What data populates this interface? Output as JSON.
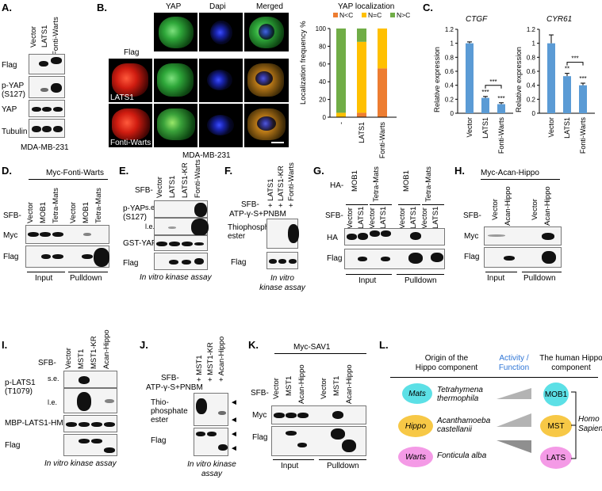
{
  "panels": {
    "A": {
      "letter": "A.",
      "lanes": [
        "Vector",
        "LATS1",
        "Fonti-Warts"
      ],
      "rows": [
        "Flag",
        "p-YAP (S127)",
        "YAP",
        "Tubulin"
      ],
      "cell_line": "MDA-MB-231"
    },
    "B": {
      "letter": "B.",
      "col_headers": [
        "YAP",
        "Dapi",
        "Merged"
      ],
      "flag_label": "Flag",
      "row_labels": [
        "LATS1",
        "Fonti-Warts"
      ],
      "cell_line": "MDA-MB-231",
      "chart": {
        "title": "YAP localization",
        "ylabel": "Localization frequency %",
        "legend": [
          "N<C",
          "N=C",
          "N>C"
        ],
        "colors": [
          "#ed7d31",
          "#ffc000",
          "#70ad47"
        ],
        "categories": [
          "-",
          "LATS1",
          "Fonti-Warts"
        ],
        "series": [
          {
            "name": "N<C",
            "values": [
              0,
              5,
              55
            ]
          },
          {
            "name": "N=C",
            "values": [
              5,
              80,
              45
            ]
          },
          {
            "name": "N>C",
            "values": [
              95,
              15,
              0
            ]
          }
        ]
      }
    },
    "C": {
      "letter": "C.",
      "genes": [
        "CTGF",
        "CYR61"
      ],
      "ylabel": "Relative expression",
      "categories": [
        "Vector",
        "LATS1",
        "Fonti-Warts"
      ],
      "ctgf": {
        "values": [
          1.0,
          0.22,
          0.13
        ],
        "errors": [
          0.02,
          0.02,
          0.02
        ],
        "stars": [
          "",
          "***",
          "***"
        ],
        "bracket": "***",
        "yticks": [
          "0",
          "0.2",
          "0.4",
          "0.6",
          "0.8",
          "1",
          "1.2"
        ]
      },
      "cyr61": {
        "values": [
          1.0,
          0.53,
          0.4
        ],
        "errors": [
          0.12,
          0.04,
          0.03
        ],
        "stars": [
          "",
          "**",
          "***"
        ],
        "bracket": "***",
        "yticks": [
          "0",
          "0.2",
          "0.4",
          "0.6",
          "0.8",
          "1",
          "1.2"
        ]
      }
    },
    "D": {
      "letter": "D.",
      "header": "Myc-Fonti-Warts",
      "sfb": "SFB-",
      "lanes": [
        "Vector",
        "MOB1",
        "Tetra-Mats",
        "Vector",
        "MOB1",
        "Tetra-Mats"
      ],
      "rows": [
        "Myc",
        "Flag"
      ],
      "footer": [
        "Input",
        "Pulldown"
      ]
    },
    "E": {
      "letter": "E.",
      "sfb": "SFB-",
      "lanes": [
        "Vector",
        "LATS1",
        "LATS1-KR",
        "Fonti-Warts"
      ],
      "rows": [
        "p-YAP (S127)",
        "s.e.",
        "l.e.",
        "GST-YAP",
        "Flag"
      ],
      "footer": "In vitro kinase assay"
    },
    "F": {
      "letter": "F.",
      "sfb": "SFB-",
      "atp": "ATP-γ-S+PNBM",
      "lanes": [
        "+ LATS1",
        "+ LATS1-KR",
        "+ Fonti-Warts"
      ],
      "rows": [
        "Thiophosphate ester",
        "Flag"
      ],
      "footer": "In vitro kinase assay"
    },
    "G": {
      "letter": "G.",
      "ha": "HA-",
      "sfb": "SFB-",
      "ha_lanes": [
        "MOB1",
        "Tetra-Mats",
        "MOB1",
        "Tetra-Mats"
      ],
      "lanes": [
        "Vector",
        "LATS1",
        "Vector",
        "LATS1",
        "Vector",
        "LATS1",
        "Vector",
        "LATS1"
      ],
      "rows": [
        "HA",
        "Flag"
      ],
      "footer": [
        "Input",
        "Pulldown"
      ]
    },
    "H": {
      "letter": "H.",
      "header": "Myc-Acan-Hippo",
      "sfb": "SFB-",
      "lanes": [
        "Vector",
        "Acan-Hippo",
        "Vector",
        "Acan-Hippo"
      ],
      "rows": [
        "Myc",
        "Flag"
      ],
      "footer": [
        "Input",
        "Pulldown"
      ]
    },
    "I": {
      "letter": "I.",
      "sfb": "SFB-",
      "lanes": [
        "Vector",
        "MST1",
        "MST1-KR",
        "Acan-Hippo"
      ],
      "rows": [
        "p-LATS1 (T1079)",
        "s.e.",
        "l.e.",
        "MBP-LATS1-HM",
        "Flag"
      ],
      "footer": "In vitro kinase assay"
    },
    "J": {
      "letter": "J.",
      "sfb": "SFB-",
      "atp": "ATP-γ-S+PNBM",
      "lanes": [
        "+ MST1",
        "+ MST1-KR",
        "+ Acan-Hippo"
      ],
      "rows": [
        "Thio- phosphate ester",
        "Flag"
      ],
      "footer": "In vitro kinase assay"
    },
    "K": {
      "letter": "K.",
      "header": "Myc-SAV1",
      "sfb": "SFB-",
      "lanes": [
        "Vector",
        "MST1",
        "Acan-Hippo",
        "Vector",
        "MST1",
        "Acan-Hippo"
      ],
      "rows": [
        "Myc",
        "Flag"
      ],
      "footer": [
        "Input",
        "Pulldown"
      ]
    },
    "L": {
      "letter": "L.",
      "col1": "Origin of the Hippo component",
      "col2": "Activity / Function",
      "col3": "The human Hippo component",
      "items": [
        {
          "name": "Mats",
          "organism": "Tetrahymena thermophila",
          "human": "MOB1",
          "color": "#5ce0e6"
        },
        {
          "name": "Hippo",
          "organism": "Acanthamoeba castellanii",
          "human": "MST",
          "color": "#f7c846"
        },
        {
          "name": "Warts",
          "organism": "Fonticula alba",
          "human": "LATS",
          "color": "#f49ae6"
        }
      ],
      "species": "Homo Sapiens"
    }
  }
}
